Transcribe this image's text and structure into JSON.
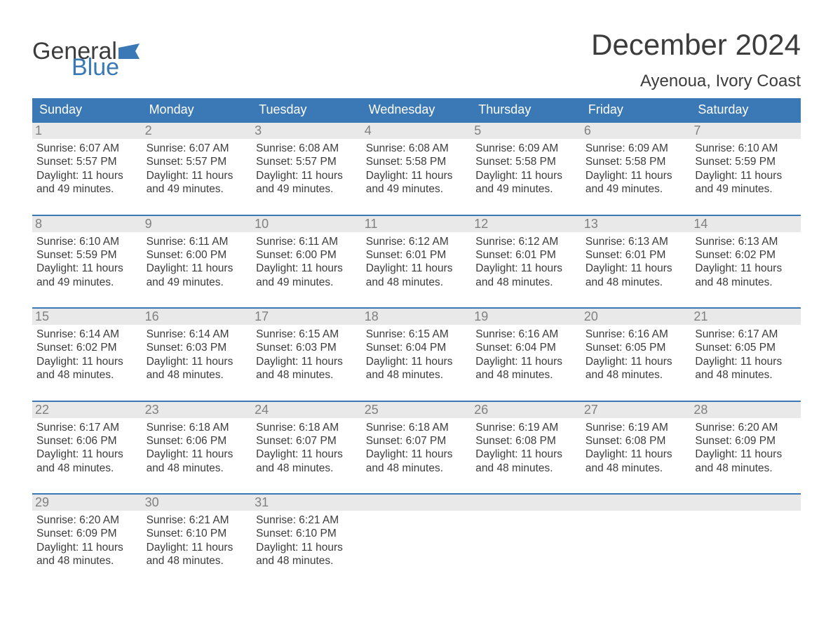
{
  "brand": {
    "word1": "General",
    "word2": "Blue",
    "accent_color": "#3a78b6"
  },
  "title": "December 2024",
  "location": "Ayenoua, Ivory Coast",
  "colors": {
    "header_bg": "#3a78b6",
    "header_text": "#ffffff",
    "strip_bg": "#e9e9e9",
    "strip_text": "#808080",
    "body_text": "#3c3c3c",
    "week_border": "#3a78b6",
    "page_bg": "#ffffff"
  },
  "typography": {
    "month_title_fontsize": 42,
    "location_fontsize": 24,
    "dow_fontsize": 18,
    "daynum_fontsize": 18,
    "body_fontsize": 15.5,
    "font_family": "Arial"
  },
  "days_of_week": [
    "Sunday",
    "Monday",
    "Tuesday",
    "Wednesday",
    "Thursday",
    "Friday",
    "Saturday"
  ],
  "labels": {
    "sunrise": "Sunrise:",
    "sunset": "Sunset:",
    "daylight": "Daylight:"
  },
  "weeks": [
    [
      {
        "n": "1",
        "sunrise": "6:07 AM",
        "sunset": "5:57 PM",
        "daylight": "11 hours and 49 minutes."
      },
      {
        "n": "2",
        "sunrise": "6:07 AM",
        "sunset": "5:57 PM",
        "daylight": "11 hours and 49 minutes."
      },
      {
        "n": "3",
        "sunrise": "6:08 AM",
        "sunset": "5:57 PM",
        "daylight": "11 hours and 49 minutes."
      },
      {
        "n": "4",
        "sunrise": "6:08 AM",
        "sunset": "5:58 PM",
        "daylight": "11 hours and 49 minutes."
      },
      {
        "n": "5",
        "sunrise": "6:09 AM",
        "sunset": "5:58 PM",
        "daylight": "11 hours and 49 minutes."
      },
      {
        "n": "6",
        "sunrise": "6:09 AM",
        "sunset": "5:58 PM",
        "daylight": "11 hours and 49 minutes."
      },
      {
        "n": "7",
        "sunrise": "6:10 AM",
        "sunset": "5:59 PM",
        "daylight": "11 hours and 49 minutes."
      }
    ],
    [
      {
        "n": "8",
        "sunrise": "6:10 AM",
        "sunset": "5:59 PM",
        "daylight": "11 hours and 49 minutes."
      },
      {
        "n": "9",
        "sunrise": "6:11 AM",
        "sunset": "6:00 PM",
        "daylight": "11 hours and 49 minutes."
      },
      {
        "n": "10",
        "sunrise": "6:11 AM",
        "sunset": "6:00 PM",
        "daylight": "11 hours and 49 minutes."
      },
      {
        "n": "11",
        "sunrise": "6:12 AM",
        "sunset": "6:01 PM",
        "daylight": "11 hours and 48 minutes."
      },
      {
        "n": "12",
        "sunrise": "6:12 AM",
        "sunset": "6:01 PM",
        "daylight": "11 hours and 48 minutes."
      },
      {
        "n": "13",
        "sunrise": "6:13 AM",
        "sunset": "6:01 PM",
        "daylight": "11 hours and 48 minutes."
      },
      {
        "n": "14",
        "sunrise": "6:13 AM",
        "sunset": "6:02 PM",
        "daylight": "11 hours and 48 minutes."
      }
    ],
    [
      {
        "n": "15",
        "sunrise": "6:14 AM",
        "sunset": "6:02 PM",
        "daylight": "11 hours and 48 minutes."
      },
      {
        "n": "16",
        "sunrise": "6:14 AM",
        "sunset": "6:03 PM",
        "daylight": "11 hours and 48 minutes."
      },
      {
        "n": "17",
        "sunrise": "6:15 AM",
        "sunset": "6:03 PM",
        "daylight": "11 hours and 48 minutes."
      },
      {
        "n": "18",
        "sunrise": "6:15 AM",
        "sunset": "6:04 PM",
        "daylight": "11 hours and 48 minutes."
      },
      {
        "n": "19",
        "sunrise": "6:16 AM",
        "sunset": "6:04 PM",
        "daylight": "11 hours and 48 minutes."
      },
      {
        "n": "20",
        "sunrise": "6:16 AM",
        "sunset": "6:05 PM",
        "daylight": "11 hours and 48 minutes."
      },
      {
        "n": "21",
        "sunrise": "6:17 AM",
        "sunset": "6:05 PM",
        "daylight": "11 hours and 48 minutes."
      }
    ],
    [
      {
        "n": "22",
        "sunrise": "6:17 AM",
        "sunset": "6:06 PM",
        "daylight": "11 hours and 48 minutes."
      },
      {
        "n": "23",
        "sunrise": "6:18 AM",
        "sunset": "6:06 PM",
        "daylight": "11 hours and 48 minutes."
      },
      {
        "n": "24",
        "sunrise": "6:18 AM",
        "sunset": "6:07 PM",
        "daylight": "11 hours and 48 minutes."
      },
      {
        "n": "25",
        "sunrise": "6:18 AM",
        "sunset": "6:07 PM",
        "daylight": "11 hours and 48 minutes."
      },
      {
        "n": "26",
        "sunrise": "6:19 AM",
        "sunset": "6:08 PM",
        "daylight": "11 hours and 48 minutes."
      },
      {
        "n": "27",
        "sunrise": "6:19 AM",
        "sunset": "6:08 PM",
        "daylight": "11 hours and 48 minutes."
      },
      {
        "n": "28",
        "sunrise": "6:20 AM",
        "sunset": "6:09 PM",
        "daylight": "11 hours and 48 minutes."
      }
    ],
    [
      {
        "n": "29",
        "sunrise": "6:20 AM",
        "sunset": "6:09 PM",
        "daylight": "11 hours and 48 minutes."
      },
      {
        "n": "30",
        "sunrise": "6:21 AM",
        "sunset": "6:10 PM",
        "daylight": "11 hours and 48 minutes."
      },
      {
        "n": "31",
        "sunrise": "6:21 AM",
        "sunset": "6:10 PM",
        "daylight": "11 hours and 48 minutes."
      },
      null,
      null,
      null,
      null
    ]
  ]
}
